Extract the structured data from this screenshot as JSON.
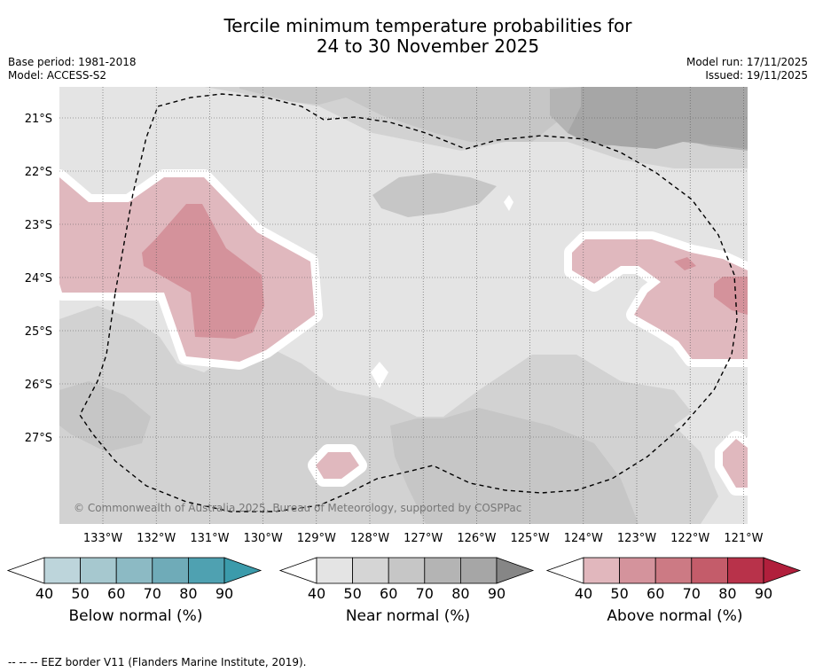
{
  "title": {
    "line1": "Tercile minimum temperature probabilities for",
    "line2": "24 to 30 November 2025"
  },
  "meta_left": {
    "base_period": "Base period: 1981-2018",
    "model": "Model: ACCESS-S2"
  },
  "meta_right": {
    "model_run": "Model run: 17/11/2025",
    "issued": "Issued: 19/11/2025"
  },
  "map": {
    "lat_labels": [
      "21°S",
      "22°S",
      "23°S",
      "24°S",
      "25°S",
      "26°S",
      "27°S"
    ],
    "lon_labels": [
      "133°W",
      "132°W",
      "131°W",
      "130°W",
      "129°W",
      "128°W",
      "127°W",
      "126°W",
      "125°W",
      "124°W",
      "123°W",
      "122°W",
      "121°W"
    ],
    "copyright": "© Commonwealth of Australia 2025, Bureau of Meteorology, supported by COSPPac",
    "colors": {
      "near_40": "#e4e4e4",
      "near_50": "#d2d2d2",
      "near_60": "#c6c6c6",
      "near_70": "#b4b4b4",
      "near_80": "#a6a6a6",
      "above_40": "#e0b8be",
      "above_50": "#d4929b",
      "above_60": "#cc7a84"
    }
  },
  "colorbars": [
    {
      "id": "below",
      "label": "Below normal (%)",
      "ticks": [
        "40",
        "50",
        "60",
        "70",
        "80",
        "90"
      ],
      "colors": [
        "#bdd5db",
        "#a6c8cf",
        "#8cbac4",
        "#6fabb8",
        "#4fa1b1",
        "#3b9bab"
      ]
    },
    {
      "id": "near",
      "label": "Near normal (%)",
      "ticks": [
        "40",
        "50",
        "60",
        "70",
        "80",
        "90"
      ],
      "colors": [
        "#e4e4e4",
        "#d5d5d5",
        "#c6c6c6",
        "#b4b4b4",
        "#a6a6a6",
        "#868686"
      ]
    },
    {
      "id": "above",
      "label": "Above normal (%)",
      "ticks": [
        "40",
        "50",
        "60",
        "70",
        "80",
        "90"
      ],
      "colors": [
        "#e1b7bd",
        "#d4939c",
        "#cc7a84",
        "#c45c6a",
        "#b8324a",
        "#b11f3c"
      ]
    }
  ],
  "footnote": "--  --  -- EEZ border V11 (Flanders Marine Institute, 2019)."
}
